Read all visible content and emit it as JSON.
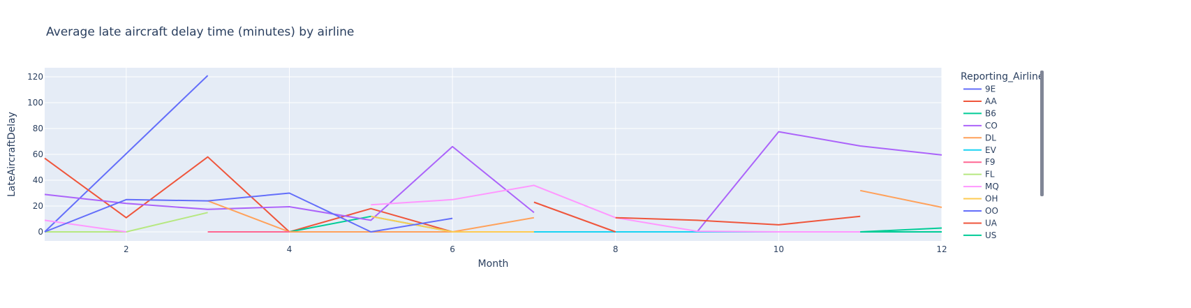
{
  "chart_data": {
    "type": "line",
    "title": "Average late aircraft delay time (minutes) by airline",
    "xlabel": "Month",
    "ylabel": "LateAircraftDelay",
    "xlim": [
      1,
      12
    ],
    "ylim": [
      -7,
      127
    ],
    "xticks": [
      2,
      4,
      6,
      8,
      10,
      12
    ],
    "yticks": [
      0,
      20,
      40,
      60,
      80,
      100,
      120
    ],
    "grid": true,
    "legend_title": "Reporting_Airline",
    "legend_position": "right",
    "series": [
      {
        "name": "9E",
        "color": "#636efa",
        "x": [
          1,
          3
        ],
        "y": [
          0,
          121
        ]
      },
      {
        "name": "AA",
        "color": "#EF553B",
        "x": [
          1,
          2,
          3,
          4,
          5,
          6
        ],
        "y": [
          57,
          11,
          58,
          0,
          18,
          0
        ]
      },
      {
        "name": "B6",
        "color": "#00cc96",
        "x": [
          4,
          5,
          6,
          11,
          12
        ],
        "y": [
          0,
          12,
          0,
          0,
          3
        ]
      },
      {
        "name": "CO",
        "color": "#ab63fa",
        "x": [
          1,
          2,
          3,
          4,
          5,
          6,
          7
        ],
        "y": [
          29,
          22,
          17.5,
          19.5,
          9,
          66,
          15
        ],
        "x2": [
          9,
          10,
          11,
          12
        ],
        "y2": [
          0,
          77.5,
          66.5,
          59.5
        ]
      },
      {
        "name": "DL",
        "color": "#FFA15A",
        "x": [
          3,
          4,
          5,
          6,
          7
        ],
        "y": [
          24,
          0,
          0,
          0,
          11
        ],
        "x2": [
          11,
          12
        ],
        "y2": [
          32,
          19
        ]
      },
      {
        "name": "EV",
        "color": "#19d3f3",
        "x": [
          7,
          8,
          10,
          11
        ],
        "y": [
          0,
          0,
          0,
          0
        ]
      },
      {
        "name": "F9",
        "color": "#FF6692",
        "x": [
          3,
          4
        ],
        "y": [
          0,
          0
        ]
      },
      {
        "name": "FL",
        "color": "#B6E880",
        "x": [
          1,
          2,
          3
        ],
        "y": [
          0,
          0,
          15
        ]
      },
      {
        "name": "MQ",
        "color": "#FF97FF",
        "x": [
          1,
          2
        ],
        "y": [
          9,
          0
        ],
        "x2": [
          5,
          6,
          7,
          8,
          9,
          10,
          11
        ],
        "y2": [
          21,
          25,
          36,
          11,
          0.5,
          0,
          0
        ]
      },
      {
        "name": "OH",
        "color": "#FECB52",
        "x": [
          5,
          6,
          7
        ],
        "y": [
          12,
          0,
          0
        ]
      },
      {
        "name": "OO",
        "color": "#636efa",
        "x": [
          1,
          2,
          3,
          4,
          5,
          6
        ],
        "y": [
          0,
          25,
          24,
          30,
          0,
          10.5
        ]
      },
      {
        "name": "UA",
        "color": "#EF553B",
        "x": [
          7,
          8
        ],
        "y": [
          23,
          0
        ],
        "x2": [
          8,
          9,
          10,
          11
        ],
        "y2": [
          11,
          9,
          5.5,
          12
        ]
      },
      {
        "name": "US",
        "color": "#00cc96",
        "x": [
          11,
          12
        ],
        "y": [
          0,
          0
        ]
      }
    ]
  }
}
